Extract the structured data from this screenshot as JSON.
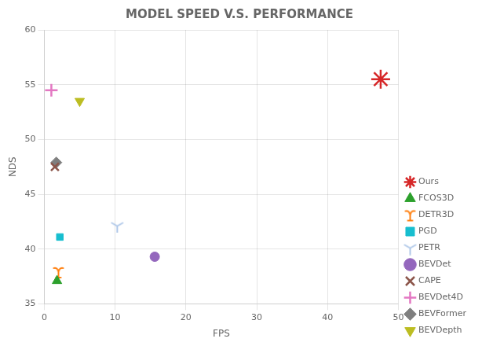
{
  "chart_data": {
    "type": "scatter",
    "title": "MODEL SPEED V.S. PERFORMANCE",
    "xlabel": "FPS",
    "ylabel": "NDS",
    "xlim": [
      0,
      50
    ],
    "ylim": [
      35,
      60
    ],
    "xticks": [
      0,
      10,
      20,
      30,
      40,
      50
    ],
    "yticks": [
      35,
      40,
      45,
      50,
      55,
      60
    ],
    "grid": true,
    "legend": "lower right",
    "series": [
      {
        "name": "FCOS3D",
        "color": "#2ca02c",
        "marker": "triangle-up",
        "x": [
          1.8
        ],
        "values": [
          37.1
        ]
      },
      {
        "name": "DETR3D",
        "color": "#ff7f0e",
        "marker": "upsilon",
        "x": [
          2.0
        ],
        "values": [
          37.9
        ]
      },
      {
        "name": "PGD",
        "color": "#17becf",
        "marker": "square",
        "x": [
          2.2
        ],
        "values": [
          41.1
        ]
      },
      {
        "name": "PETR",
        "color": "#aec7e8",
        "marker": "tri-down",
        "x": [
          10.3
        ],
        "values": [
          42.1
        ]
      },
      {
        "name": "BEVDet",
        "color": "#9467bd",
        "marker": "circle",
        "x": [
          15.6
        ],
        "values": [
          39.3
        ]
      },
      {
        "name": "CAPE",
        "color": "#8c564b",
        "marker": "x-filled",
        "x": [
          1.5
        ],
        "values": [
          47.5
        ]
      },
      {
        "name": "BEVDet4D",
        "color": "#e377c2",
        "marker": "plus",
        "x": [
          1.0
        ],
        "values": [
          54.5
        ]
      },
      {
        "name": "BEVFormer",
        "color": "#7f7f7f",
        "marker": "diamond",
        "x": [
          1.7
        ],
        "values": [
          47.9
        ]
      },
      {
        "name": "BEVDepth",
        "color": "#bcbd22",
        "marker": "triangle-down",
        "x": [
          5.0
        ],
        "values": [
          53.5
        ]
      },
      {
        "name": "Ours",
        "color": "#d62728",
        "marker": "star",
        "x": [
          47.5
        ],
        "values": [
          55.5
        ]
      }
    ]
  }
}
